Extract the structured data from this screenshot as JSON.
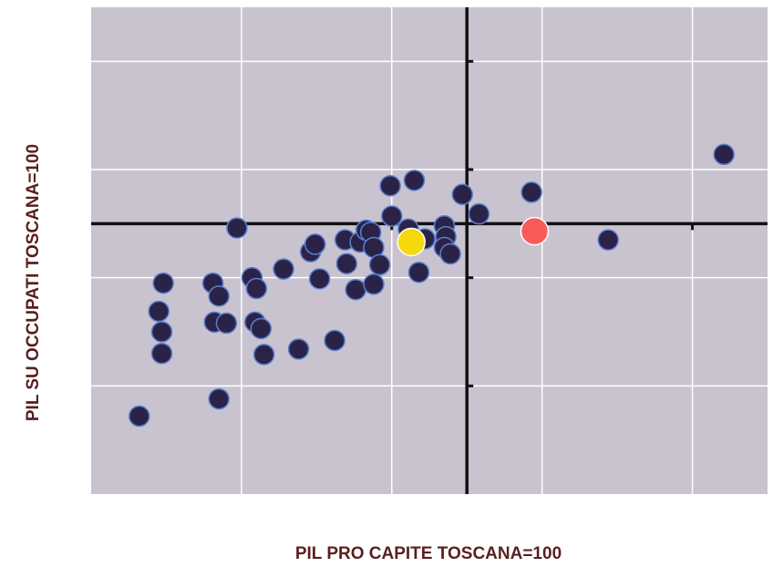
{
  "chart_data": {
    "type": "scatter",
    "xlabel": "PIL PRO CAPITE TOSCANA=100",
    "ylabel": "PIL SU OCCUPATI TOSCANA=100",
    "xlim": [
      75,
      120
    ],
    "ylim": [
      75,
      120
    ],
    "xticks": [
      85,
      95,
      105,
      115
    ],
    "yticks": [
      85,
      95,
      105,
      115
    ],
    "xcross": 100,
    "ycross": 100,
    "grid": true,
    "series": [
      {
        "color": "#2b2347",
        "x": [
          117.1,
          78.2,
          83.5,
          79.8,
          79.5,
          79.7,
          79.7,
          83.1,
          83.5,
          83.2,
          84.0,
          84.7,
          85.7,
          86.0,
          85.9,
          86.3,
          86.5,
          87.8,
          88.8,
          89.6,
          89.9,
          90.2,
          91.2,
          91.9,
          92.0,
          92.6,
          92.9,
          93.3,
          93.6,
          93.8,
          94.2,
          93.8,
          94.9,
          95.0,
          96.1,
          96.5,
          96.8,
          97.2,
          98.5,
          98.6,
          98.5,
          98.9,
          99.7,
          100.8,
          104.3,
          109.4
        ],
        "values": [
          106.4,
          82.2,
          83.8,
          94.5,
          91.9,
          90.0,
          88.0,
          94.5,
          93.3,
          90.9,
          90.8,
          99.6,
          95.0,
          94.0,
          90.9,
          90.3,
          87.9,
          95.8,
          88.4,
          97.4,
          98.1,
          94.9,
          89.2,
          98.5,
          96.3,
          93.9,
          98.3,
          99.4,
          99.2,
          97.8,
          96.2,
          94.4,
          103.5,
          100.7,
          99.5,
          104.0,
          95.5,
          98.6,
          99.8,
          98.8,
          97.8,
          97.2,
          102.7,
          100.9,
          102.9,
          98.5
        ]
      },
      {
        "color": "#f5d90a",
        "x": [
          96.3
        ],
        "values": [
          98.3
        ]
      },
      {
        "color": "#f95a5a",
        "x": [
          104.5
        ],
        "values": [
          99.3
        ]
      }
    ]
  }
}
